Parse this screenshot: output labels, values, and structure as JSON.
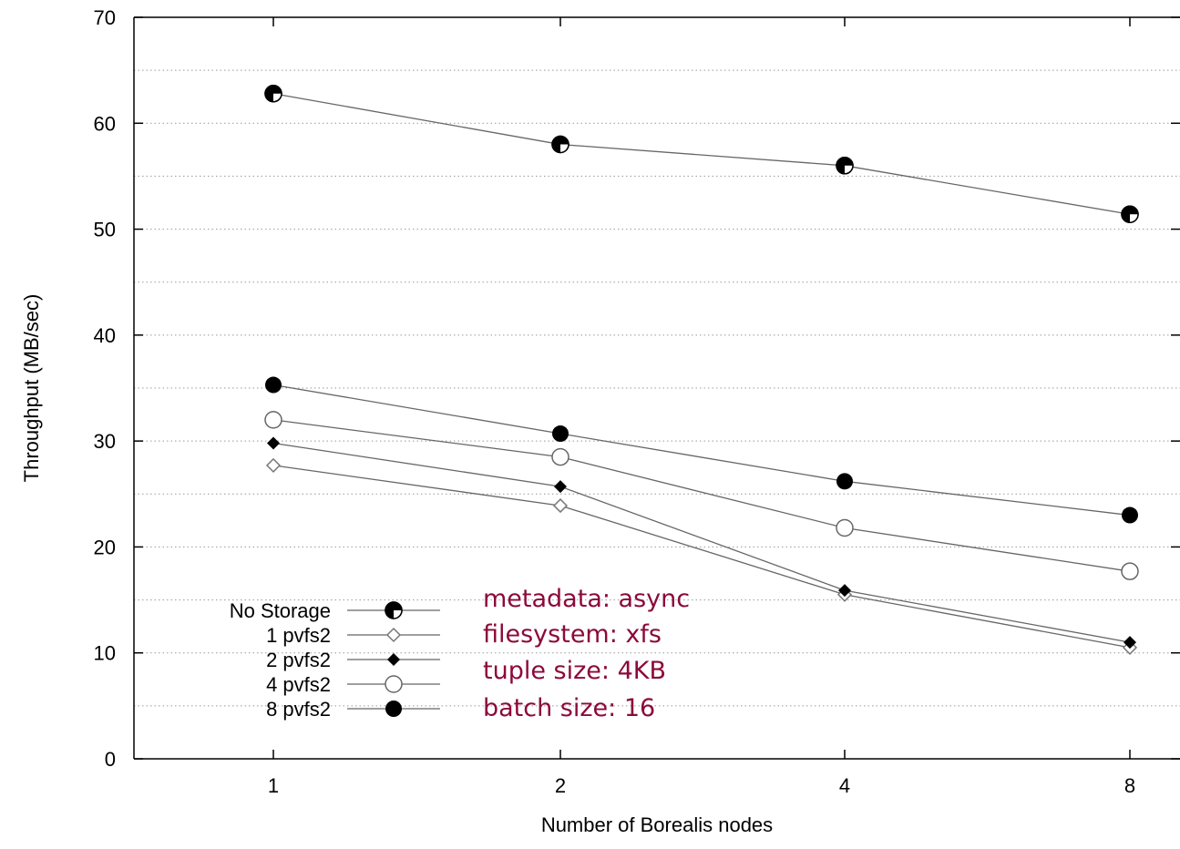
{
  "chart_data": {
    "type": "line",
    "title": "",
    "xlabel": "Number of Borealis nodes",
    "ylabel": "Throughput (MB/sec)",
    "categories": [
      "1",
      "2",
      "4",
      "8"
    ],
    "ylim": [
      0,
      70
    ],
    "yticks": [
      0,
      10,
      20,
      30,
      40,
      50,
      60,
      70
    ],
    "grid": "horizontal dotted",
    "legend_position": "bottom-left",
    "series": [
      {
        "name": "No Storage",
        "marker": "half-filled-circle",
        "values": [
          62.8,
          58.0,
          56.0,
          51.4
        ]
      },
      {
        "name": "1 pvfs2",
        "marker": "open-diamond",
        "values": [
          27.7,
          23.9,
          15.5,
          10.5
        ]
      },
      {
        "name": "2 pvfs2",
        "marker": "filled-diamond",
        "values": [
          29.8,
          25.7,
          15.9,
          11.0
        ]
      },
      {
        "name": "4 pvfs2",
        "marker": "open-circle",
        "values": [
          32.0,
          28.5,
          21.8,
          17.7
        ]
      },
      {
        "name": "8 pvfs2",
        "marker": "filled-circle",
        "values": [
          35.3,
          30.7,
          26.2,
          23.0
        ]
      }
    ],
    "annotations": [
      "metadata:  async",
      "filesystem: xfs",
      "tuple size:  4KB",
      "batch size: 16"
    ],
    "annotation_color": "#8b0a3a"
  }
}
